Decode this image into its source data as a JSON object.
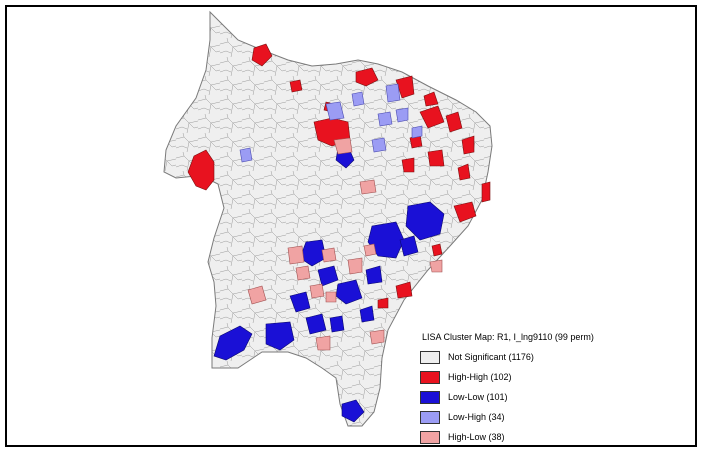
{
  "map": {
    "legend": {
      "title": "LISA Cluster Map: R1, I_lng9110 (99 perm)",
      "items": [
        {
          "label": "Not Significant (1176)",
          "color": "#efefef",
          "name": "not-significant"
        },
        {
          "label": "High-High (102)",
          "color": "#e8121f",
          "name": "high-high"
        },
        {
          "label": "Low-Low (101)",
          "color": "#1a10d6",
          "name": "low-low"
        },
        {
          "label": "Low-High (34)",
          "color": "#9b9cf4",
          "name": "low-high"
        },
        {
          "label": "High-Low (38)",
          "color": "#f0a3a3",
          "name": "high-low"
        }
      ]
    },
    "colors": {
      "base": "#efefef",
      "border": "#8a8a8a"
    }
  }
}
